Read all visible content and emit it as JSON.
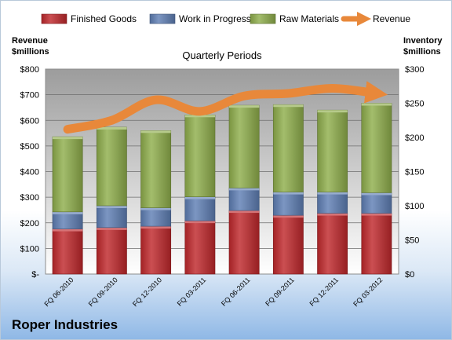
{
  "chart_data": {
    "type": "bar",
    "stacked": true,
    "subtitle": "Quarterly Periods",
    "company": "Roper Industries",
    "left_axis": {
      "title_lines": [
        "Revenue",
        "$millions"
      ],
      "ylim": [
        0,
        800
      ],
      "ticks": [
        0,
        100,
        200,
        300,
        400,
        500,
        600,
        700,
        800
      ],
      "tick_labels": [
        "$-",
        "$100",
        "$200",
        "$300",
        "$400",
        "$500",
        "$600",
        "$700",
        "$800"
      ]
    },
    "right_axis": {
      "title_lines": [
        "Inventory",
        "$millions"
      ],
      "ylim": [
        0,
        300
      ],
      "ticks": [
        0,
        50,
        100,
        150,
        200,
        250,
        300
      ],
      "tick_labels": [
        "$0",
        "$50",
        "$100",
        "$150",
        "$200",
        "$250",
        "$300"
      ]
    },
    "categories": [
      "FQ 06-2010",
      "FQ 09-2010",
      "FQ 12-2010",
      "FQ 03-2011",
      "FQ 06-2011",
      "FQ 09-2011",
      "FQ 12-2011",
      "FQ 03-2012"
    ],
    "series": [
      {
        "name": "Finished Goods",
        "axis": "right",
        "color": "#c0282c",
        "values": [
          66,
          68,
          70,
          78,
          93,
          86,
          89,
          89
        ]
      },
      {
        "name": "Work in Progress",
        "axis": "right",
        "color": "#5f7fb5",
        "values": [
          25,
          32,
          27,
          35,
          33,
          34,
          31,
          30
        ]
      },
      {
        "name": "Raw Materials",
        "axis": "right",
        "color": "#8fae4c",
        "values": [
          110,
          115,
          113,
          120,
          121,
          128,
          120,
          131
        ]
      },
      {
        "name": "Revenue",
        "axis": "left",
        "type": "line",
        "color": "#e8883a",
        "values": [
          565,
          600,
          680,
          635,
          695,
          705,
          725,
          705
        ]
      }
    ],
    "grid": true,
    "legend_position": "top"
  }
}
